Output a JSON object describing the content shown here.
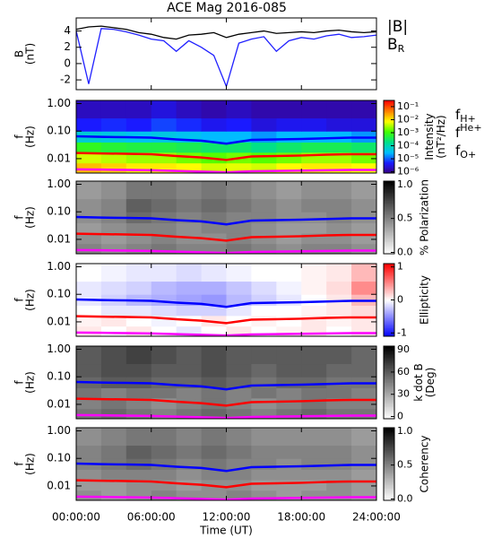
{
  "chart_data": [
    {
      "type": "line",
      "title": "ACE Mag 2016-085",
      "ylabel": [
        "B",
        "(nT)"
      ],
      "xlim": [
        0,
        24
      ],
      "ylim": [
        -3.2,
        5.6
      ],
      "yticks": [
        -2,
        0,
        2,
        4
      ],
      "x": [
        0,
        1,
        2,
        3,
        4,
        5,
        6,
        7,
        8,
        9,
        10,
        11,
        12,
        13,
        14,
        15,
        16,
        17,
        18,
        19,
        20,
        21,
        22,
        23,
        24
      ],
      "series": [
        {
          "name": "|B|",
          "color": "#000000",
          "values": [
            4.2,
            4.5,
            4.6,
            4.4,
            4.2,
            3.8,
            3.6,
            3.2,
            3.0,
            3.5,
            3.6,
            3.8,
            3.2,
            3.6,
            3.8,
            4.0,
            3.7,
            3.8,
            3.9,
            3.8,
            4.0,
            4.1,
            3.9,
            3.8,
            3.9
          ]
        },
        {
          "name": "BR",
          "color": "#2020ff",
          "values": [
            4.0,
            -2.5,
            4.3,
            4.2,
            3.9,
            3.5,
            3.0,
            2.8,
            1.5,
            2.8,
            2.0,
            1.0,
            -2.8,
            2.5,
            3.0,
            3.3,
            1.5,
            2.8,
            3.2,
            3.0,
            3.4,
            3.6,
            3.2,
            3.3,
            3.5
          ]
        }
      ]
    },
    {
      "type": "heatmap",
      "ylabel": [
        "f",
        "(Hz)"
      ],
      "log_y": true,
      "ylim": [
        0.003,
        1.3
      ],
      "yticks": [
        {
          "value": 1,
          "label": "1.00"
        },
        {
          "value": 0.1,
          "label": "0.10"
        },
        {
          "value": 0.01,
          "label": "0.01"
        }
      ],
      "x_edges": [
        0,
        2,
        4,
        6,
        8,
        10,
        12,
        14,
        16,
        18,
        20,
        22,
        24
      ],
      "y_edges": [
        0.003,
        0.007,
        0.017,
        0.04,
        0.1,
        0.3,
        1.3
      ],
      "z": [
        [
          0.02,
          0.015,
          0.01,
          0.01,
          0.008,
          0.005,
          0.006,
          0.005,
          0.008,
          0.01,
          0.01,
          0.008
        ],
        [
          0.005,
          0.004,
          0.003,
          0.003,
          0.002,
          0.0015,
          0.002,
          0.0015,
          0.002,
          0.003,
          0.003,
          0.002
        ],
        [
          0.0008,
          0.0006,
          0.0005,
          0.0005,
          0.0004,
          0.0003,
          0.0003,
          0.0002,
          0.0003,
          0.0004,
          0.0004,
          0.0003
        ],
        [
          6e-05,
          5e-05,
          4e-05,
          5e-05,
          4e-05,
          3e-05,
          3e-05,
          2e-05,
          3e-05,
          3e-05,
          3e-05,
          2e-05
        ],
        [
          5e-06,
          6e-06,
          5e-06,
          8e-06,
          6e-06,
          4e-06,
          5e-06,
          3e-06,
          4e-06,
          4e-06,
          3e-06,
          3e-06
        ],
        [
          2e-06,
          2e-06,
          2e-06,
          3e-06,
          2e-06,
          1.5e-06,
          2e-06,
          1.5e-06,
          1.5e-06,
          1.5e-06,
          1.5e-06,
          1.5e-06
        ]
      ],
      "colorbar": {
        "label": [
          "Intensity",
          "(nT²/Hz)"
        ],
        "log": true,
        "lim": [
          8e-07,
          0.3
        ],
        "colors": [
          "#3b0080",
          "#1a1aff",
          "#00bfff",
          "#00e08a",
          "#40ff00",
          "#ffff00",
          "#ff8000",
          "#ff0000"
        ],
        "ticks": [
          {
            "value": 0.1,
            "label": "10⁻¹"
          },
          {
            "value": 0.01,
            "label": "10⁻²"
          },
          {
            "value": 0.001,
            "label": "10⁻³"
          },
          {
            "value": 0.0001,
            "label": "10⁻⁴"
          },
          {
            "value": 1e-05,
            "label": "10⁻⁵"
          },
          {
            "value": 1e-06,
            "label": "10⁻⁶"
          }
        ]
      },
      "x": [
        0,
        2,
        4,
        6,
        8,
        10,
        12,
        14,
        16,
        18,
        20,
        22,
        24
      ],
      "series": [
        {
          "name": "fH+",
          "color": "#0000ff",
          "values": [
            0.065,
            0.062,
            0.06,
            0.058,
            0.05,
            0.045,
            0.035,
            0.048,
            0.05,
            0.052,
            0.055,
            0.058,
            0.058
          ]
        },
        {
          "name": "fHe+",
          "color": "#ff0000",
          "values": [
            0.016,
            0.0155,
            0.015,
            0.0145,
            0.0125,
            0.011,
            0.009,
            0.012,
            0.0125,
            0.013,
            0.014,
            0.0145,
            0.0145
          ]
        },
        {
          "name": "fO+",
          "color": "#ff00ff",
          "values": [
            0.0041,
            0.004,
            0.0039,
            0.0038,
            0.0036,
            0.0034,
            0.0032,
            0.0035,
            0.0036,
            0.0037,
            0.0038,
            0.0039,
            0.0039
          ]
        }
      ]
    },
    {
      "type": "heatmap",
      "ylabel": [
        "f",
        "(Hz)"
      ],
      "log_y": true,
      "ylim": [
        0.003,
        1.3
      ],
      "yticks": [
        {
          "value": 1,
          "label": "1.00"
        },
        {
          "value": 0.1,
          "label": "0.10"
        },
        {
          "value": 0.01,
          "label": "0.01"
        }
      ],
      "x_edges": [
        0,
        2,
        4,
        6,
        8,
        10,
        12,
        14,
        16,
        18,
        20,
        22,
        24
      ],
      "y_edges": [
        0.003,
        0.007,
        0.017,
        0.04,
        0.1,
        0.3,
        1.3
      ],
      "z": [
        [
          0.5,
          0.45,
          0.5,
          0.55,
          0.5,
          0.5,
          0.55,
          0.5,
          0.45,
          0.5,
          0.5,
          0.45
        ],
        [
          0.45,
          0.4,
          0.45,
          0.5,
          0.45,
          0.45,
          0.5,
          0.45,
          0.4,
          0.45,
          0.45,
          0.4
        ],
        [
          0.4,
          0.45,
          0.5,
          0.5,
          0.45,
          0.5,
          0.5,
          0.45,
          0.4,
          0.4,
          0.45,
          0.4
        ],
        [
          0.45,
          0.5,
          0.6,
          0.55,
          0.5,
          0.55,
          0.5,
          0.5,
          0.45,
          0.45,
          0.5,
          0.45
        ],
        [
          0.45,
          0.5,
          0.65,
          0.6,
          0.55,
          0.6,
          0.55,
          0.5,
          0.45,
          0.5,
          0.5,
          0.45
        ],
        [
          0.4,
          0.45,
          0.55,
          0.55,
          0.5,
          0.55,
          0.5,
          0.45,
          0.4,
          0.45,
          0.45,
          0.4
        ]
      ],
      "colorbar": {
        "label": [
          "% Polarization"
        ],
        "log": false,
        "lim": [
          -0.02,
          1.05
        ],
        "colors": [
          "#ffffff",
          "#000000"
        ],
        "ticks": [
          {
            "value": 1,
            "label": "1.0"
          },
          {
            "value": 0.5,
            "label": "0.5"
          },
          {
            "value": 0,
            "label": "0.0"
          }
        ]
      }
    },
    {
      "type": "heatmap",
      "ylabel": [
        "f",
        "(Hz)"
      ],
      "log_y": true,
      "ylim": [
        0.003,
        1.3
      ],
      "yticks": [
        {
          "value": 1,
          "label": "1.00"
        },
        {
          "value": 0.1,
          "label": "0.10"
        },
        {
          "value": 0.01,
          "label": "0.01"
        }
      ],
      "x_edges": [
        0,
        2,
        4,
        6,
        8,
        10,
        12,
        14,
        16,
        18,
        20,
        22,
        24
      ],
      "y_edges": [
        0.003,
        0.007,
        0.017,
        0.04,
        0.1,
        0.3,
        1.3
      ],
      "z": [
        [
          0.1,
          0,
          0.1,
          0,
          -0.1,
          0,
          0.1,
          0,
          0.05,
          0.1,
          0,
          0.1
        ],
        [
          0.05,
          0.1,
          0,
          -0.05,
          0,
          0.1,
          0,
          0.05,
          0,
          0.1,
          0.05,
          0.1
        ],
        [
          0,
          -0.1,
          -0.1,
          -0.15,
          -0.2,
          -0.2,
          -0.1,
          0,
          0,
          0.05,
          0.1,
          0.15
        ],
        [
          -0.1,
          -0.2,
          -0.3,
          -0.35,
          -0.4,
          -0.45,
          -0.3,
          -0.2,
          -0.1,
          0,
          0.1,
          0.3
        ],
        [
          -0.1,
          -0.15,
          -0.2,
          -0.3,
          -0.35,
          -0.35,
          -0.25,
          -0.15,
          -0.05,
          0.05,
          0.15,
          0.5
        ],
        [
          0,
          -0.05,
          -0.1,
          -0.1,
          -0.15,
          -0.1,
          -0.05,
          0,
          0,
          0.05,
          0.1,
          0.3
        ]
      ],
      "colorbar": {
        "label": [
          "Ellipticity"
        ],
        "log": false,
        "lim": [
          -1.1,
          1.1
        ],
        "colors": [
          "#0000ff",
          "#ffffff",
          "#ff0000"
        ],
        "ticks": [
          1,
          0,
          -1
        ]
      }
    },
    {
      "type": "heatmap",
      "ylabel": [
        "f",
        "(Hz)"
      ],
      "log_y": true,
      "ylim": [
        0.003,
        1.3
      ],
      "yticks": [
        {
          "value": 1,
          "label": "1.00"
        },
        {
          "value": 0.1,
          "label": "0.10"
        },
        {
          "value": 0.01,
          "label": "0.01"
        }
      ],
      "x_edges": [
        0,
        2,
        4,
        6,
        8,
        10,
        12,
        14,
        16,
        18,
        20,
        22,
        24
      ],
      "y_edges": [
        0.003,
        0.007,
        0.017,
        0.04,
        0.1,
        0.3,
        1.3
      ],
      "z": [
        [
          50,
          55,
          50,
          45,
          50,
          55,
          50,
          45,
          50,
          55,
          50,
          50
        ],
        [
          45,
          50,
          45,
          40,
          45,
          50,
          45,
          40,
          45,
          50,
          45,
          45
        ],
        [
          50,
          45,
          50,
          50,
          45,
          50,
          45,
          50,
          45,
          50,
          50,
          45
        ],
        [
          55,
          60,
          60,
          55,
          55,
          60,
          55,
          50,
          55,
          55,
          50,
          50
        ],
        [
          60,
          65,
          65,
          60,
          60,
          65,
          60,
          55,
          60,
          60,
          55,
          55
        ],
        [
          60,
          65,
          70,
          65,
          60,
          65,
          60,
          60,
          60,
          60,
          60,
          55
        ]
      ],
      "colorbar": {
        "label": [
          "k dot B",
          "(Deg)"
        ],
        "log": false,
        "lim": [
          -3,
          95
        ],
        "colors": [
          "#ffffff",
          "#000000"
        ],
        "ticks": [
          90,
          60,
          30,
          0
        ]
      }
    },
    {
      "type": "heatmap",
      "ylabel": [
        "f",
        "(Hz)"
      ],
      "log_y": true,
      "ylim": [
        0.003,
        1.3
      ],
      "yticks": [
        {
          "value": 1,
          "label": "1.00"
        },
        {
          "value": 0.1,
          "label": "0.10"
        },
        {
          "value": 0.01,
          "label": "0.01"
        }
      ],
      "x_edges": [
        0,
        2,
        4,
        6,
        8,
        10,
        12,
        14,
        16,
        18,
        20,
        22,
        24
      ],
      "y_edges": [
        0.003,
        0.007,
        0.017,
        0.04,
        0.1,
        0.3,
        1.3
      ],
      "z": [
        [
          0.45,
          0.4,
          0.45,
          0.5,
          0.45,
          0.45,
          0.5,
          0.45,
          0.4,
          0.45,
          0.45,
          0.4
        ],
        [
          0.4,
          0.4,
          0.45,
          0.45,
          0.4,
          0.45,
          0.45,
          0.4,
          0.4,
          0.4,
          0.45,
          0.4
        ],
        [
          0.45,
          0.5,
          0.5,
          0.5,
          0.45,
          0.5,
          0.5,
          0.45,
          0.45,
          0.45,
          0.45,
          0.4
        ],
        [
          0.5,
          0.55,
          0.6,
          0.55,
          0.5,
          0.55,
          0.5,
          0.5,
          0.45,
          0.5,
          0.5,
          0.45
        ],
        [
          0.5,
          0.55,
          0.65,
          0.6,
          0.55,
          0.6,
          0.55,
          0.5,
          0.5,
          0.5,
          0.5,
          0.45
        ],
        [
          0.45,
          0.5,
          0.55,
          0.55,
          0.5,
          0.55,
          0.5,
          0.45,
          0.45,
          0.45,
          0.45,
          0.4
        ]
      ],
      "colorbar": {
        "label": [
          "Coherency"
        ],
        "log": false,
        "lim": [
          -0.02,
          1.05
        ],
        "colors": [
          "#ffffff",
          "#000000"
        ],
        "ticks": [
          {
            "value": 1,
            "label": "1.0"
          },
          {
            "value": 0.5,
            "label": "0.5"
          },
          {
            "value": 0,
            "label": "0.0"
          }
        ]
      },
      "xlabel": "Time (UT)",
      "xticks": [
        {
          "value": 0,
          "label": "00:00:00"
        },
        {
          "value": 6,
          "label": "06:00:00"
        },
        {
          "value": 12,
          "label": "12:00:00"
        },
        {
          "value": 18,
          "label": "18:00:00"
        },
        {
          "value": 24,
          "label": "24:00:00"
        }
      ]
    }
  ]
}
